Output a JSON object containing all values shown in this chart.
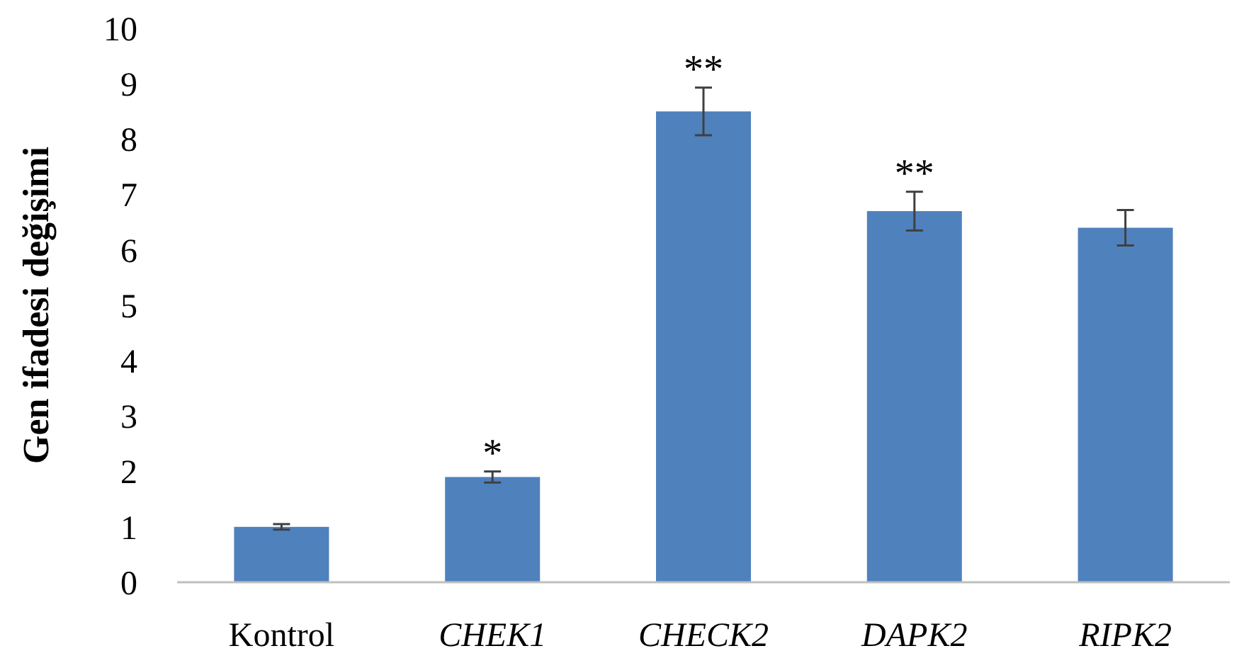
{
  "chart_data": {
    "type": "bar",
    "ylabel": "Gen ifadesi değişimi",
    "categories": [
      "Kontrol",
      "CHEK1",
      "CHECK2",
      "DAPK2",
      "RIPK2"
    ],
    "values": [
      1.0,
      1.9,
      8.5,
      6.7,
      6.4
    ],
    "errors": [
      0.05,
      0.1,
      0.43,
      0.35,
      0.32
    ],
    "color": "#4f81bd",
    "ylim": [
      0,
      10
    ],
    "yticks": [
      0,
      1,
      2,
      3,
      4,
      5,
      6,
      7,
      8,
      9,
      10
    ],
    "grid": false,
    "annotations": [
      {
        "text": "*",
        "x": "CHEK1",
        "y": 2.0
      },
      {
        "text": "**",
        "x": "CHECK2",
        "y": 8.93
      },
      {
        "text": "**",
        "x": "DAPK2",
        "y": 7.05
      }
    ]
  }
}
